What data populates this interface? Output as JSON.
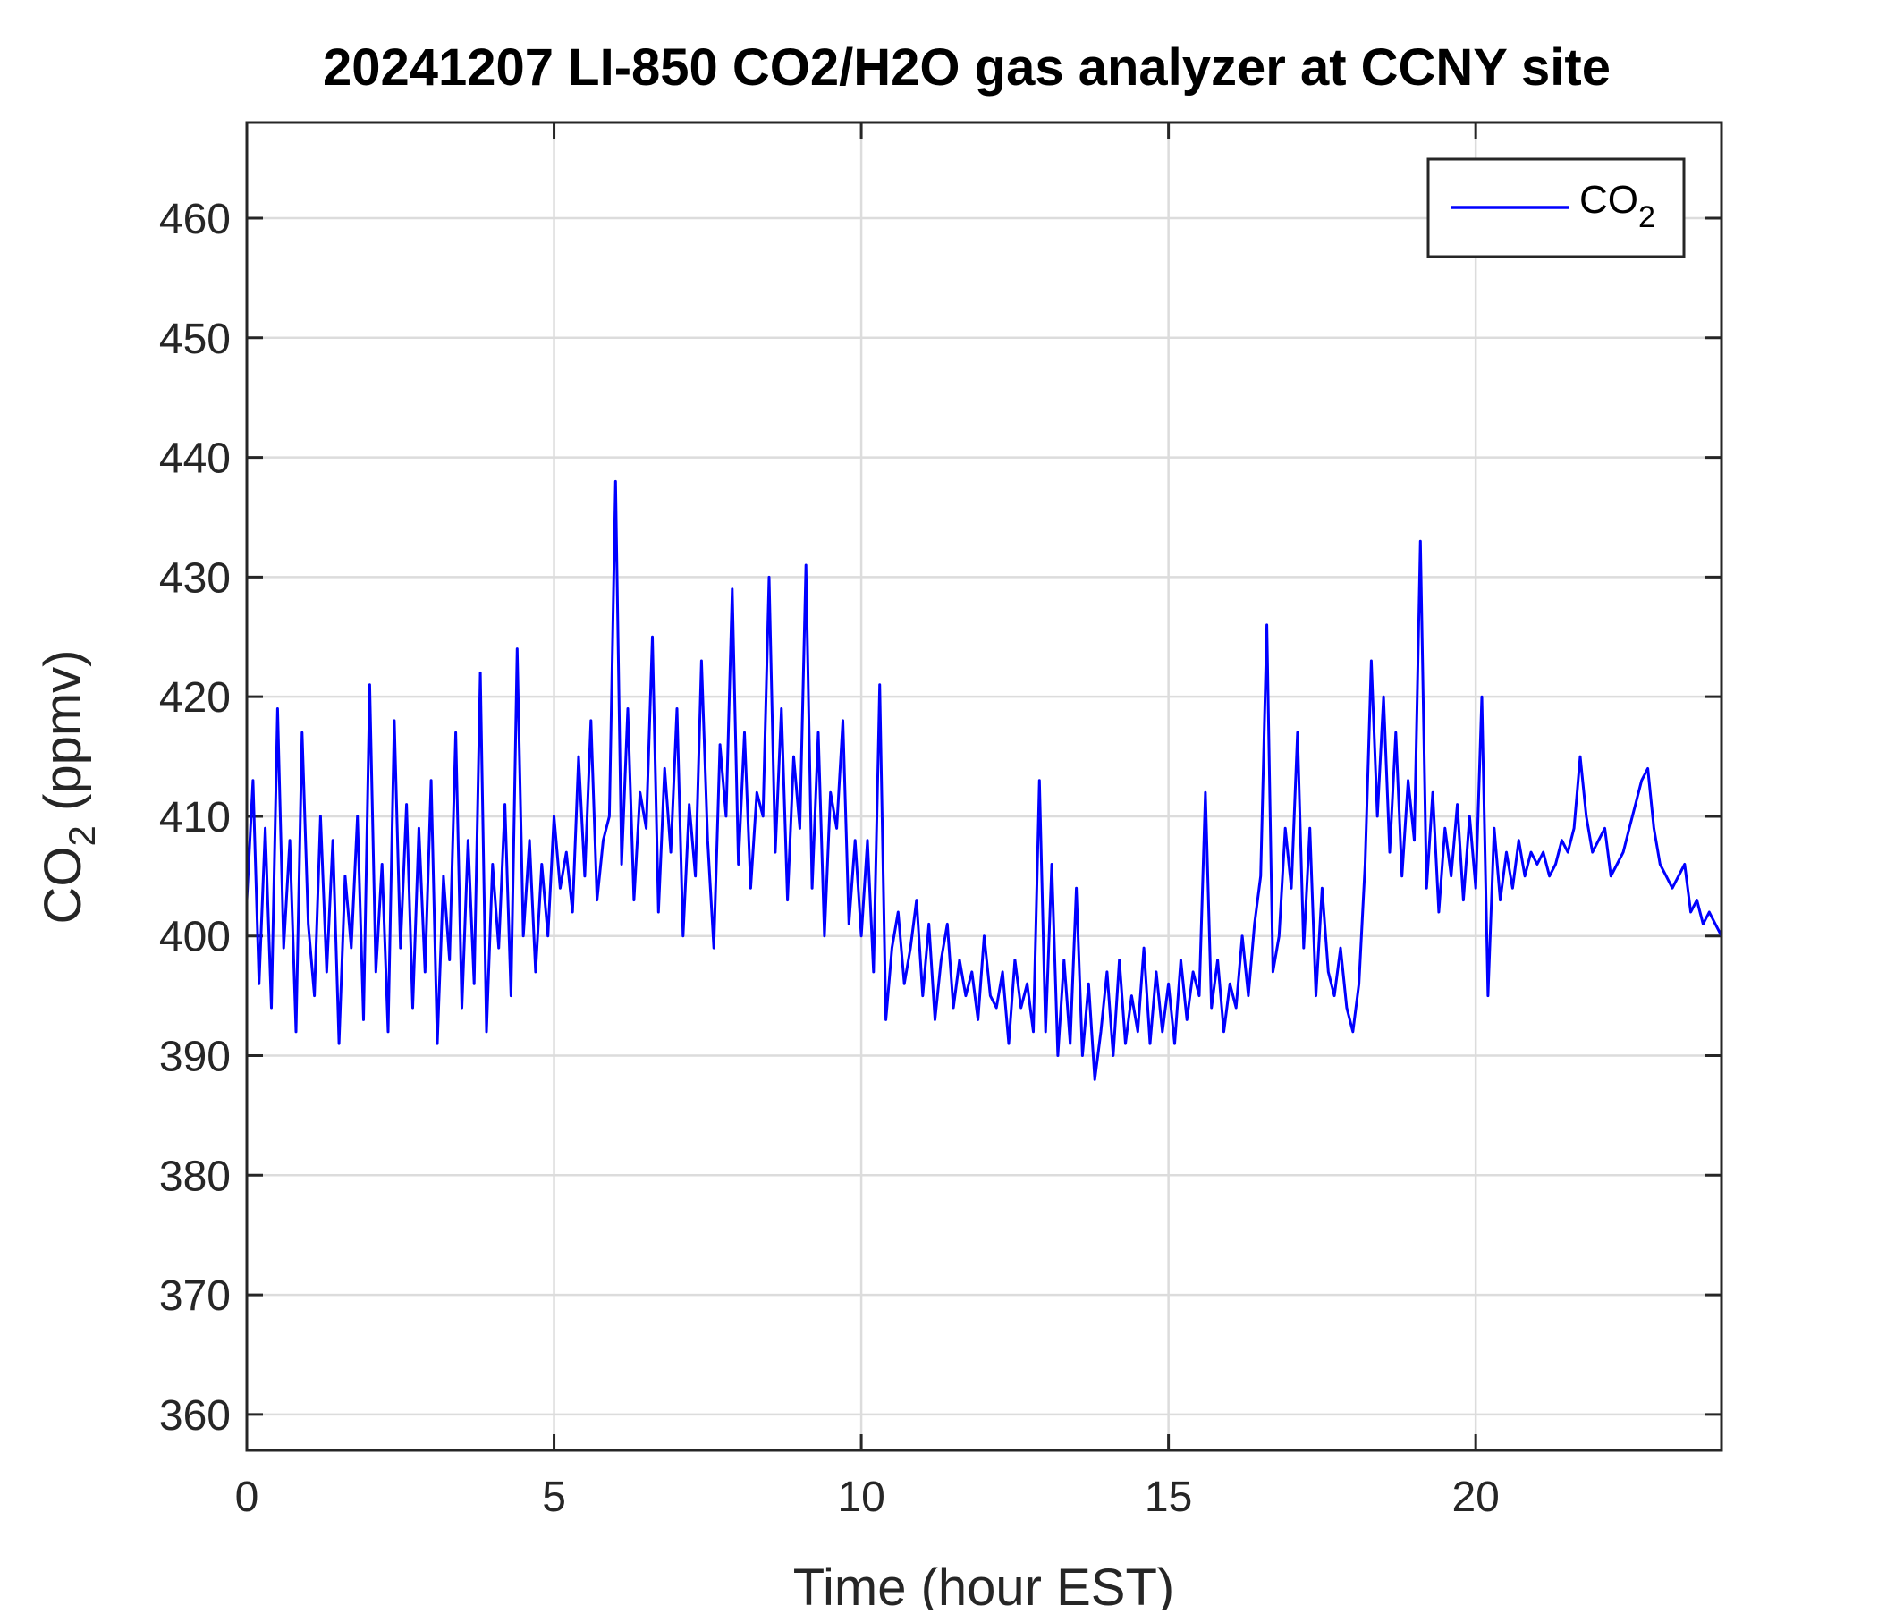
{
  "chart_data": {
    "type": "line",
    "title": "20241207 LI-850 CO2/H2O gas analyzer at CCNY site",
    "xlabel": "Time (hour EST)",
    "ylabel": {
      "main": "CO",
      "subscript": "2",
      "suffix": " (ppmv)"
    },
    "xlim": [
      0,
      24
    ],
    "ylim": [
      357,
      468
    ],
    "xticks": [
      0,
      5,
      10,
      15,
      20
    ],
    "xtick_labels": [
      "0",
      "5",
      "10",
      "15",
      "20"
    ],
    "yticks": [
      360,
      370,
      380,
      390,
      400,
      410,
      420,
      430,
      440,
      450,
      460
    ],
    "ytick_labels": [
      "360",
      "370",
      "380",
      "390",
      "400",
      "410",
      "420",
      "430",
      "440",
      "450",
      "460"
    ],
    "grid": true,
    "legend": {
      "placement": "top-right",
      "entries": [
        {
          "main": "CO",
          "subscript": "2"
        }
      ]
    },
    "colors": {
      "series": "#0000ff",
      "frame": "#262626",
      "grid": "#dcdcdc"
    },
    "series": [
      {
        "name": "CO2",
        "x": [
          0,
          0.1,
          0.2,
          0.3,
          0.4,
          0.5,
          0.6,
          0.7,
          0.8,
          0.9,
          1.0,
          1.1,
          1.2,
          1.3,
          1.4,
          1.5,
          1.6,
          1.7,
          1.8,
          1.9,
          2.0,
          2.1,
          2.2,
          2.3,
          2.4,
          2.5,
          2.6,
          2.7,
          2.8,
          2.9,
          3.0,
          3.1,
          3.2,
          3.3,
          3.4,
          3.5,
          3.6,
          3.7,
          3.8,
          3.9,
          4.0,
          4.1,
          4.2,
          4.3,
          4.4,
          4.5,
          4.6,
          4.7,
          4.8,
          4.9,
          5.0,
          5.1,
          5.2,
          5.3,
          5.4,
          5.5,
          5.6,
          5.7,
          5.8,
          5.9,
          6.0,
          6.1,
          6.2,
          6.3,
          6.4,
          6.5,
          6.6,
          6.7,
          6.8,
          6.9,
          7.0,
          7.1,
          7.2,
          7.3,
          7.4,
          7.5,
          7.6,
          7.7,
          7.8,
          7.9,
          8.0,
          8.1,
          8.2,
          8.3,
          8.4,
          8.5,
          8.6,
          8.7,
          8.8,
          8.9,
          9.0,
          9.1,
          9.2,
          9.3,
          9.4,
          9.5,
          9.6,
          9.7,
          9.8,
          9.9,
          10.0,
          10.1,
          10.2,
          10.3,
          10.4,
          10.5,
          10.6,
          10.7,
          10.8,
          10.9,
          11.0,
          11.1,
          11.2,
          11.3,
          11.4,
          11.5,
          11.6,
          11.7,
          11.8,
          11.9,
          12.0,
          12.1,
          12.2,
          12.3,
          12.4,
          12.5,
          12.6,
          12.7,
          12.8,
          12.9,
          13.0,
          13.1,
          13.2,
          13.3,
          13.4,
          13.5,
          13.6,
          13.7,
          13.8,
          13.9,
          14.0,
          14.1,
          14.2,
          14.3,
          14.4,
          14.5,
          14.6,
          14.7,
          14.8,
          14.9,
          15.0,
          15.1,
          15.2,
          15.3,
          15.4,
          15.5,
          15.6,
          15.7,
          15.8,
          15.9,
          16.0,
          16.1,
          16.2,
          16.3,
          16.4,
          16.5,
          16.6,
          16.7,
          16.8,
          16.9,
          17.0,
          17.1,
          17.2,
          17.3,
          17.4,
          17.5,
          17.6,
          17.7,
          17.8,
          17.9,
          18.0,
          18.1,
          18.2,
          18.3,
          18.4,
          18.5,
          18.6,
          18.7,
          18.8,
          18.9,
          19.0,
          19.1,
          19.2,
          19.3,
          19.4,
          19.5,
          19.6,
          19.7,
          19.8,
          19.9,
          20.0,
          20.1,
          20.2,
          20.3,
          20.4,
          20.5,
          20.6,
          20.7,
          20.8,
          20.9,
          21.0,
          21.1,
          21.2,
          21.3,
          21.4,
          21.5,
          21.6,
          21.7,
          21.8,
          21.9,
          22.0,
          22.1,
          22.2,
          22.3,
          22.4,
          22.5,
          22.6,
          22.7,
          22.8,
          22.9,
          23.0,
          23.1,
          23.2,
          23.3,
          23.4,
          23.5,
          23.6,
          23.7,
          23.8,
          23.9,
          24.0
        ],
        "y": [
          403,
          413,
          396,
          409,
          394,
          419,
          399,
          408,
          392,
          417,
          401,
          395,
          410,
          397,
          408,
          391,
          405,
          399,
          410,
          393,
          421,
          397,
          406,
          392,
          418,
          399,
          411,
          394,
          409,
          397,
          413,
          391,
          405,
          398,
          417,
          394,
          408,
          396,
          422,
          392,
          406,
          399,
          411,
          395,
          424,
          400,
          408,
          397,
          406,
          400,
          410,
          404,
          407,
          402,
          415,
          405,
          418,
          403,
          408,
          410,
          438,
          406,
          419,
          403,
          412,
          409,
          425,
          402,
          414,
          407,
          419,
          400,
          411,
          405,
          423,
          408,
          399,
          416,
          410,
          429,
          406,
          417,
          404,
          412,
          410,
          430,
          407,
          419,
          403,
          415,
          409,
          431,
          404,
          417,
          400,
          412,
          409,
          418,
          401,
          408,
          400,
          408,
          397,
          421,
          393,
          399,
          402,
          396,
          399,
          403,
          395,
          401,
          393,
          398,
          401,
          394,
          398,
          395,
          397,
          393,
          400,
          395,
          394,
          397,
          391,
          398,
          394,
          396,
          392,
          413,
          392,
          406,
          390,
          398,
          391,
          404,
          390,
          396,
          388,
          392,
          397,
          390,
          398,
          391,
          395,
          392,
          399,
          391,
          397,
          392,
          396,
          391,
          398,
          393,
          397,
          395,
          412,
          394,
          398,
          392,
          396,
          394,
          400,
          395,
          401,
          405,
          426,
          397,
          400,
          409,
          404,
          417,
          399,
          409,
          395,
          404,
          397,
          395,
          399,
          394,
          392,
          396,
          406,
          423,
          410,
          420,
          407,
          417,
          405,
          413,
          408,
          433,
          404,
          412,
          402,
          409,
          405,
          411,
          403,
          410,
          404,
          420,
          395,
          409,
          403,
          407,
          404,
          408,
          405,
          407,
          406,
          407,
          405,
          406,
          408,
          407,
          409,
          415,
          410,
          407,
          408,
          409,
          405,
          406,
          407,
          409,
          411,
          413,
          414,
          409,
          406,
          405,
          404,
          405,
          406,
          402,
          403,
          401,
          402,
          401,
          400
        ]
      }
    ]
  }
}
